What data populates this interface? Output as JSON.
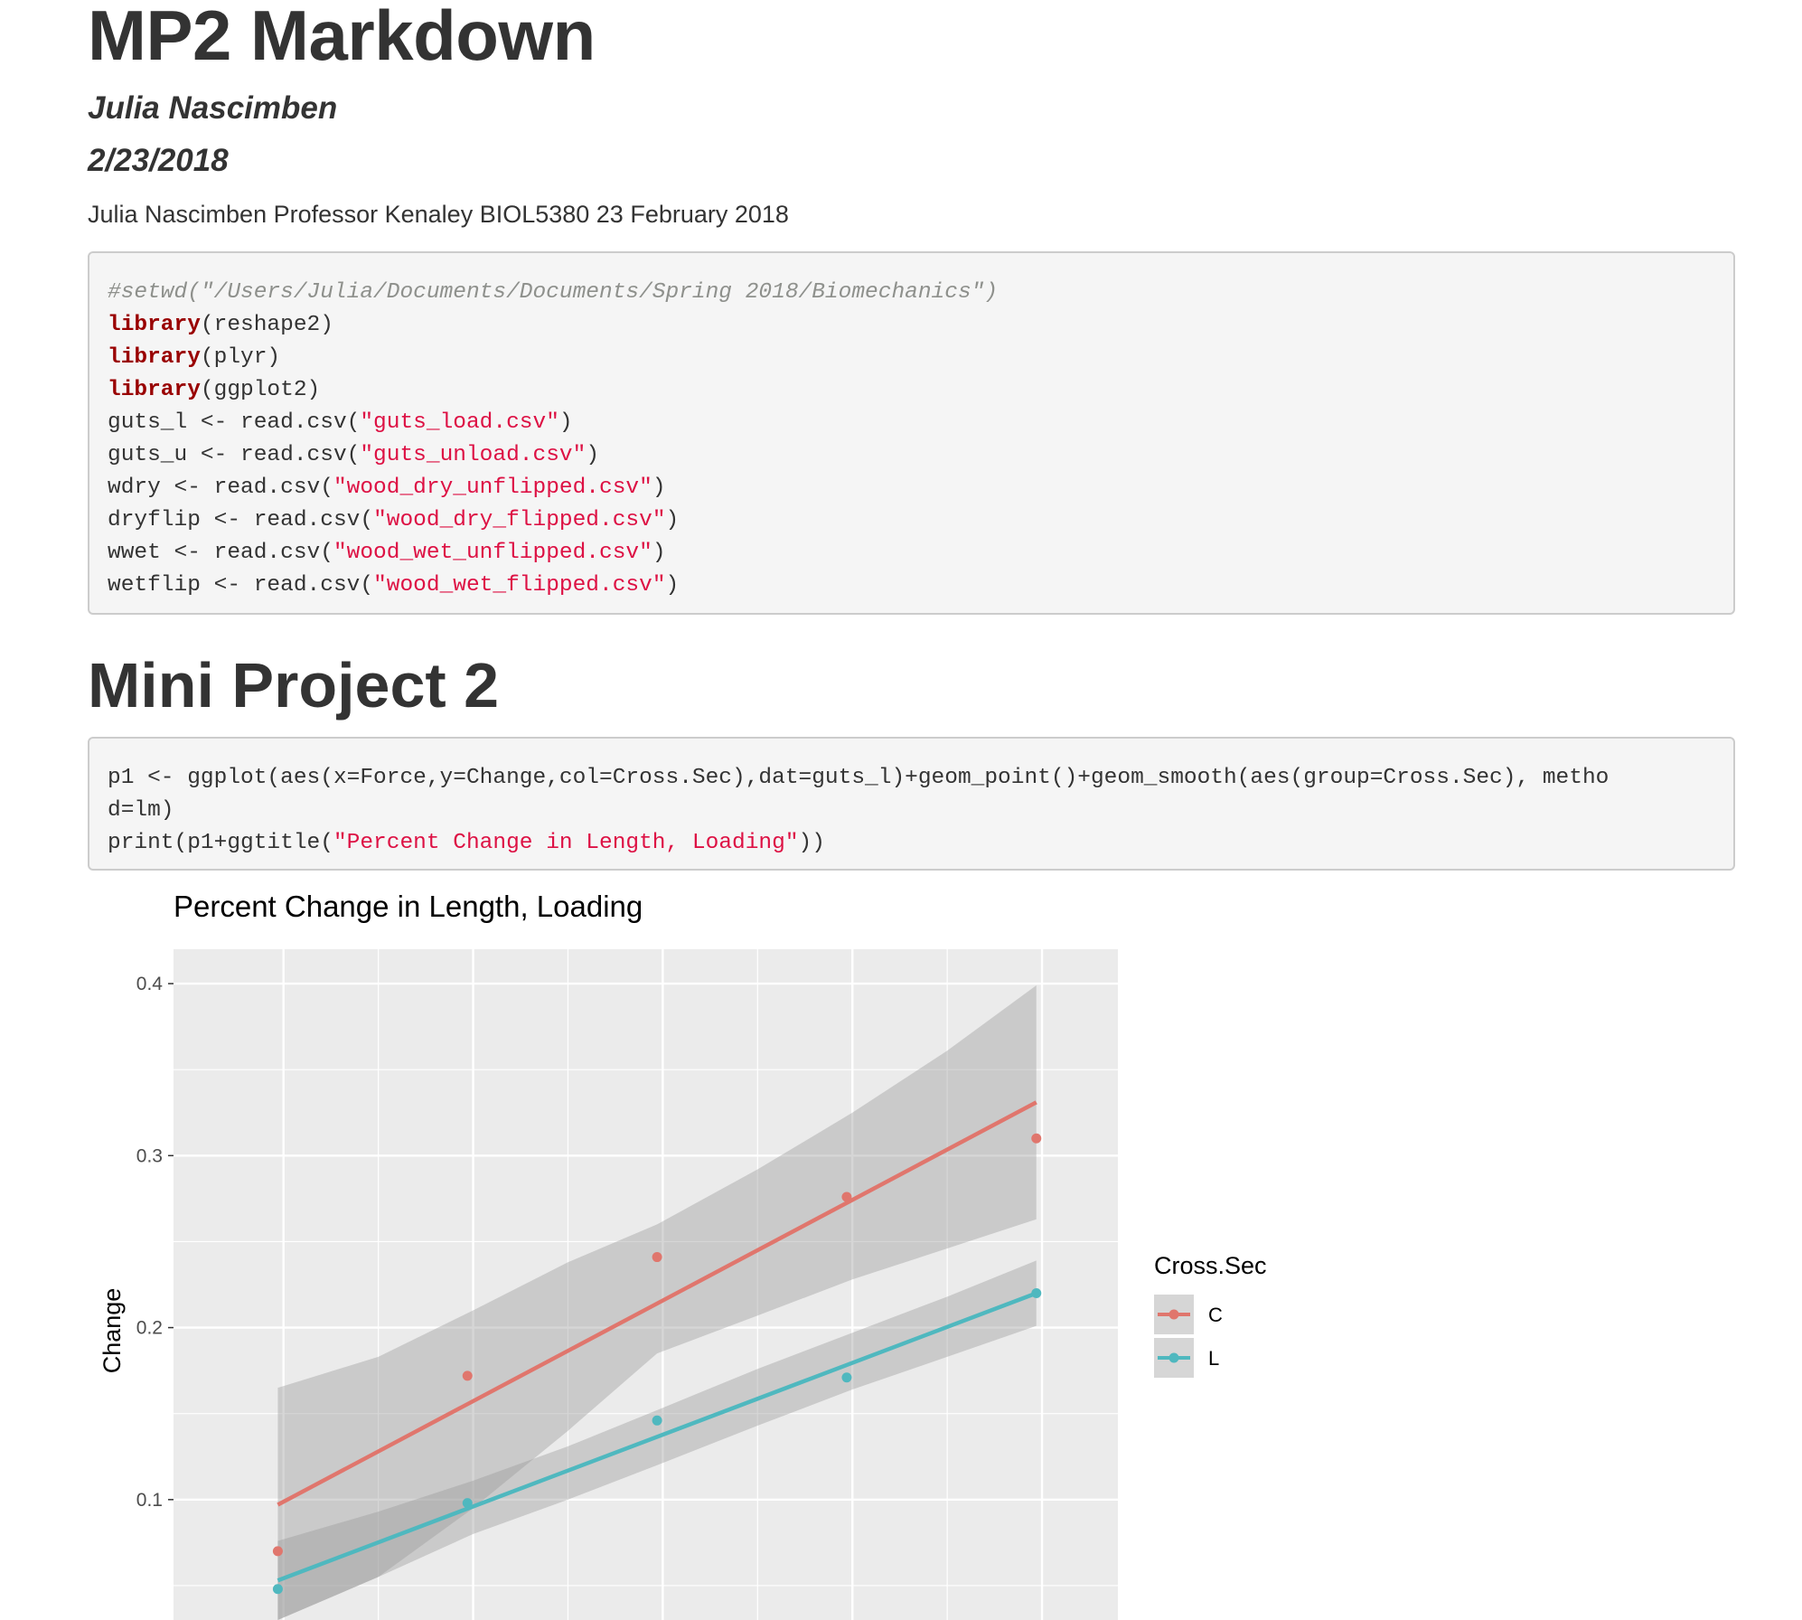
{
  "document": {
    "title": "MP2 Markdown",
    "author": "Julia Nascimben",
    "date": "2/23/2018",
    "intro": "Julia Nascimben Professor Kenaley BIOL5380 23 February 2018",
    "section_heading": "Mini Project 2"
  },
  "code_block_1": {
    "comment": "#setwd(\"/Users/Julia/Documents/Documents/Spring 2018/Biomechanics\")",
    "kw_library": "library",
    "lib1": "(reshape2)",
    "lib2": "(plyr)",
    "lib3": "(ggplot2)",
    "l5_pre": "guts_l <- read.csv(",
    "l5_str": "\"guts_load.csv\"",
    "l6_pre": "guts_u <- read.csv(",
    "l6_str": "\"guts_unload.csv\"",
    "l7_pre": "wdry <- read.csv(",
    "l7_str": "\"wood_dry_unflipped.csv\"",
    "l8_pre": "dryflip <- read.csv(",
    "l8_str": "\"wood_dry_flipped.csv\"",
    "l9_pre": "wwet <- read.csv(",
    "l9_str": "\"wood_wet_unflipped.csv\"",
    "l10_pre": "wetflip <- read.csv(",
    "l10_str": "\"wood_wet_flipped.csv\"",
    "close_paren": ")"
  },
  "code_block_2": {
    "line1": "p1 <- ggplot(aes(x=Force,y=Change,col=Cross.Sec),dat=guts_l)+geom_point()+geom_smooth(aes(group=Cross.Sec), metho",
    "line2": "d=lm)",
    "l3_pre": "print(p1+ggtitle(",
    "l3_str": "\"Percent Change in Length, Loading\"",
    "l3_post": "))"
  },
  "chart_data": {
    "type": "scatter",
    "title": "Percent Change in Length, Loading",
    "ylabel": "Change",
    "xlabel": "",
    "xlim": [
      0.42,
      5.4
    ],
    "ylim": [
      0.03,
      0.42
    ],
    "y_ticks": [
      0.1,
      0.2,
      0.3,
      0.4
    ],
    "y_tick_labels": [
      "0.1",
      "0.2",
      "0.3",
      "0.4"
    ],
    "x_major_breaks": [
      1,
      2,
      3,
      4,
      5
    ],
    "x_minor_breaks": [
      1.5,
      2.5,
      3.5,
      4.5
    ],
    "grid": true,
    "legend": {
      "title": "Cross.Sec",
      "position": "right",
      "entries": [
        "C",
        "L"
      ]
    },
    "series": [
      {
        "name": "C",
        "color": "#e0766d",
        "x": [
          0.97,
          1.97,
          2.97,
          3.97,
          4.97
        ],
        "y": [
          0.07,
          0.172,
          0.241,
          0.276,
          0.31
        ],
        "fit": {
          "x": [
            0.97,
            4.97
          ],
          "y": [
            0.097,
            0.331
          ]
        },
        "ci": {
          "x": [
            0.97,
            1.5,
            2.0,
            2.5,
            2.97,
            3.5,
            4.0,
            4.5,
            4.97
          ],
          "lower": [
            0.03,
            0.055,
            0.095,
            0.14,
            0.185,
            0.207,
            0.228,
            0.246,
            0.263
          ],
          "upper": [
            0.165,
            0.183,
            0.21,
            0.238,
            0.26,
            0.292,
            0.325,
            0.361,
            0.399
          ]
        }
      },
      {
        "name": "L",
        "color": "#4fb8bf",
        "x": [
          0.97,
          1.97,
          2.97,
          3.97,
          4.97
        ],
        "y": [
          0.048,
          0.098,
          0.146,
          0.171,
          0.22
        ],
        "fit": {
          "x": [
            0.97,
            4.97
          ],
          "y": [
            0.053,
            0.22
          ]
        },
        "ci": {
          "x": [
            0.97,
            1.5,
            2.0,
            2.5,
            2.97,
            3.5,
            4.0,
            4.5,
            4.97
          ],
          "lower": [
            0.03,
            0.055,
            0.08,
            0.1,
            0.12,
            0.143,
            0.164,
            0.183,
            0.201
          ],
          "upper": [
            0.076,
            0.093,
            0.111,
            0.131,
            0.152,
            0.176,
            0.197,
            0.218,
            0.239
          ]
        }
      }
    ]
  },
  "colors": {
    "panel_bg": "#ebebeb",
    "grid_line": "#ffffff",
    "ci_fill": "#999999",
    "text": "#333333",
    "string": "#dd1144",
    "keyword": "#990000",
    "comment": "#8e908c"
  }
}
